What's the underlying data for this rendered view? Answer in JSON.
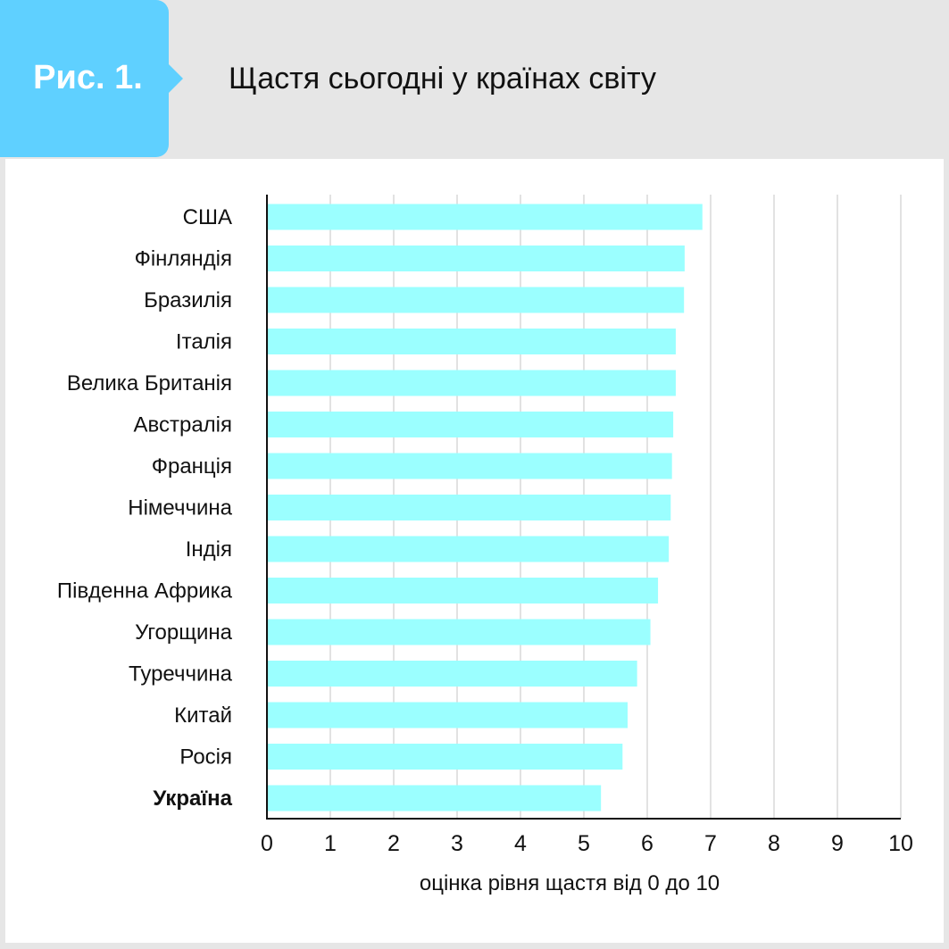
{
  "header": {
    "figure_label": "Рис. 1.",
    "title": "Щастя сьогодні у країнах світу"
  },
  "colors": {
    "badge": "#5fd0ff",
    "bar": "#9bffff",
    "header_bg": "#e6e6e6",
    "grid": "#d9d9d9"
  },
  "chart_data": {
    "type": "bar",
    "orientation": "horizontal",
    "title": "Щастя сьогодні у країнах світу",
    "xlabel": "оцінка рівня щастя від 0 до 10",
    "ylabel": "",
    "xlim": [
      0,
      10
    ],
    "xticks": [
      0,
      1,
      2,
      3,
      4,
      5,
      6,
      7,
      8,
      9,
      10
    ],
    "grid": "vertical",
    "categories": [
      "США",
      "Фінляндія",
      "Бразилія",
      "Італія",
      "Велика Британія",
      "Австралія",
      "Франція",
      "Німеччина",
      "Індія",
      "Південна Африка",
      "Угорщина",
      "Туреччина",
      "Китай",
      "Росія",
      "Україна"
    ],
    "values": [
      6.87,
      6.59,
      6.58,
      6.45,
      6.45,
      6.41,
      6.39,
      6.37,
      6.34,
      6.17,
      6.05,
      5.84,
      5.69,
      5.61,
      5.27
    ],
    "highlight": "Україна"
  }
}
